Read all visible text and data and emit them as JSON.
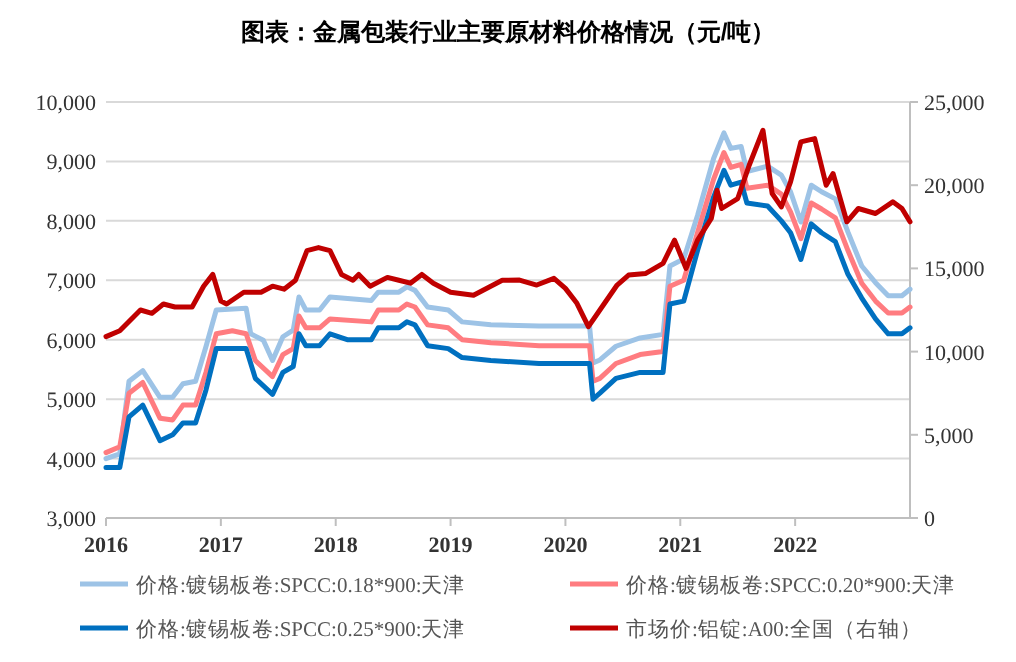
{
  "chart_data": {
    "type": "line",
    "title": "图表：金属包装行业主要原材料价格情况（元/吨）",
    "xlim": [
      2016,
      2023
    ],
    "xticks": [
      2016,
      2017,
      2018,
      2019,
      2020,
      2021,
      2022
    ],
    "ylim": [
      3000,
      10000
    ],
    "yticks": [
      {
        "value": 3000,
        "label": "3,000"
      },
      {
        "value": 4000,
        "label": "4,000"
      },
      {
        "value": 5000,
        "label": "5,000"
      },
      {
        "value": 6000,
        "label": "6,000"
      },
      {
        "value": 7000,
        "label": "7,000"
      },
      {
        "value": 8000,
        "label": "8,000"
      },
      {
        "value": 9000,
        "label": "9,000"
      },
      {
        "value": 10000,
        "label": "10,000"
      }
    ],
    "y2lim": [
      0,
      25000
    ],
    "y2ticks": [
      0,
      {
        "value": 5000,
        "label": "5,000"
      },
      {
        "value": 10000,
        "label": "10,000"
      },
      {
        "value": 15000,
        "label": "15,000"
      },
      {
        "value": 20000,
        "label": "20,000"
      },
      {
        "value": 25000,
        "label": "25,000"
      }
    ],
    "grid": "y",
    "legend": "bottom",
    "marker": "none",
    "line_style": "solid",
    "series": [
      {
        "name": "价格:镀锡板卷:SPCC:0.18*900:天津",
        "color": "#9dc3e6",
        "x": [
          2016.0,
          2016.12,
          2016.2,
          2016.32,
          2016.47,
          2016.58,
          2016.67,
          2016.78,
          2016.87,
          2016.96,
          2017.22,
          2017.26,
          2017.37,
          2017.45,
          2017.54,
          2017.63,
          2017.68,
          2017.74,
          2017.86,
          2017.95,
          2018.31,
          2018.37,
          2018.55,
          2018.62,
          2018.69,
          2018.8,
          2018.98,
          2019.1,
          2019.35,
          2019.77,
          2020.21,
          2020.24,
          2020.3,
          2020.44,
          2020.65,
          2020.85,
          2020.91,
          2021.03,
          2021.15,
          2021.29,
          2021.38,
          2021.44,
          2021.53,
          2021.58,
          2021.76,
          2021.88,
          2021.96,
          2022.05,
          2022.14,
          2022.23,
          2022.35,
          2022.46,
          2022.58,
          2022.7,
          2022.81,
          2022.93,
          2023.0
        ],
        "values": [
          4000,
          4080,
          5300,
          5480,
          5030,
          5030,
          5260,
          5300,
          5880,
          6500,
          6530,
          6100,
          5990,
          5650,
          6050,
          6160,
          6720,
          6500,
          6500,
          6720,
          6660,
          6800,
          6800,
          6890,
          6830,
          6550,
          6500,
          6300,
          6250,
          6230,
          6230,
          5610,
          5660,
          5890,
          6030,
          6090,
          7240,
          7360,
          8090,
          9050,
          9480,
          9220,
          9250,
          8830,
          8920,
          8770,
          8490,
          7980,
          8600,
          8490,
          8370,
          7810,
          7240,
          6960,
          6740,
          6740,
          6850
        ]
      },
      {
        "name": "价格:镀锡板卷:SPCC:0.20*900:天津",
        "color": "#ff7c80",
        "x": [
          2016.0,
          2016.12,
          2016.2,
          2016.32,
          2016.47,
          2016.58,
          2016.67,
          2016.78,
          2016.87,
          2016.96,
          2017.1,
          2017.22,
          2017.3,
          2017.45,
          2017.54,
          2017.63,
          2017.68,
          2017.74,
          2017.86,
          2017.95,
          2018.31,
          2018.37,
          2018.55,
          2018.62,
          2018.69,
          2018.8,
          2018.98,
          2019.1,
          2019.35,
          2019.77,
          2020.21,
          2020.24,
          2020.3,
          2020.44,
          2020.65,
          2020.85,
          2020.91,
          2021.03,
          2021.15,
          2021.29,
          2021.38,
          2021.44,
          2021.53,
          2021.58,
          2021.76,
          2021.88,
          2021.96,
          2022.05,
          2022.14,
          2022.23,
          2022.35,
          2022.46,
          2022.58,
          2022.7,
          2022.81,
          2022.93,
          2023.0
        ],
        "values": [
          4100,
          4200,
          5100,
          5280,
          4680,
          4650,
          4900,
          4900,
          5450,
          6100,
          6150,
          6100,
          5650,
          5380,
          5750,
          5850,
          6400,
          6200,
          6200,
          6350,
          6300,
          6500,
          6500,
          6600,
          6550,
          6250,
          6200,
          6000,
          5950,
          5900,
          5900,
          5300,
          5350,
          5600,
          5750,
          5800,
          6900,
          7000,
          7800,
          8700,
          9150,
          8900,
          8950,
          8550,
          8600,
          8450,
          8150,
          7700,
          8300,
          8200,
          8050,
          7500,
          6950,
          6650,
          6450,
          6450,
          6550
        ]
      },
      {
        "name": "价格:镀锡板卷:SPCC:0.25*900:天津",
        "color": "#0070c0",
        "x": [
          2016.0,
          2016.12,
          2016.2,
          2016.32,
          2016.47,
          2016.58,
          2016.67,
          2016.78,
          2016.87,
          2016.96,
          2017.22,
          2017.3,
          2017.45,
          2017.54,
          2017.63,
          2017.68,
          2017.74,
          2017.86,
          2017.95,
          2018.1,
          2018.31,
          2018.37,
          2018.55,
          2018.62,
          2018.69,
          2018.8,
          2018.98,
          2019.1,
          2019.35,
          2019.77,
          2020.21,
          2020.24,
          2020.3,
          2020.44,
          2020.65,
          2020.85,
          2020.91,
          2021.03,
          2021.15,
          2021.29,
          2021.38,
          2021.44,
          2021.53,
          2021.58,
          2021.76,
          2021.88,
          2021.96,
          2022.05,
          2022.14,
          2022.23,
          2022.35,
          2022.46,
          2022.58,
          2022.7,
          2022.81,
          2022.93,
          2023.0
        ],
        "values": [
          3850,
          3850,
          4700,
          4900,
          4300,
          4400,
          4600,
          4600,
          5150,
          5850,
          5850,
          5350,
          5080,
          5450,
          5550,
          6100,
          5900,
          5900,
          6100,
          6000,
          6000,
          6200,
          6200,
          6300,
          6250,
          5900,
          5850,
          5700,
          5650,
          5600,
          5600,
          5000,
          5100,
          5350,
          5450,
          5450,
          6600,
          6650,
          7500,
          8400,
          8850,
          8600,
          8650,
          8300,
          8250,
          8000,
          7800,
          7350,
          7950,
          7800,
          7650,
          7100,
          6700,
          6350,
          6100,
          6100,
          6200
        ]
      },
      {
        "name": "市场价:铝锭:A00:全国（右轴）",
        "color": "#c00000",
        "axis": "y2",
        "x": [
          2016.0,
          2016.12,
          2016.3,
          2016.4,
          2016.5,
          2016.6,
          2016.75,
          2016.85,
          2016.93,
          2017.0,
          2017.05,
          2017.2,
          2017.35,
          2017.45,
          2017.55,
          2017.65,
          2017.75,
          2017.85,
          2017.95,
          2018.05,
          2018.15,
          2018.2,
          2018.3,
          2018.45,
          2018.55,
          2018.65,
          2018.75,
          2018.85,
          2019.0,
          2019.2,
          2019.3,
          2019.45,
          2019.6,
          2019.75,
          2019.9,
          2020.0,
          2020.1,
          2020.2,
          2020.3,
          2020.45,
          2020.55,
          2020.7,
          2020.85,
          2020.95,
          2021.05,
          2021.15,
          2021.27,
          2021.32,
          2021.36,
          2021.5,
          2021.6,
          2021.72,
          2021.8,
          2021.88,
          2021.96,
          2022.05,
          2022.17,
          2022.27,
          2022.33,
          2022.45,
          2022.55,
          2022.7,
          2022.85,
          2022.93,
          2023.0
        ],
        "values": [
          10900,
          11250,
          12500,
          12300,
          12860,
          12680,
          12680,
          13930,
          14640,
          13040,
          12860,
          13570,
          13570,
          13930,
          13750,
          14290,
          16070,
          16250,
          16070,
          14640,
          14290,
          14640,
          13930,
          14460,
          14290,
          14110,
          14640,
          14110,
          13570,
          13390,
          13750,
          14290,
          14300,
          14000,
          14400,
          13800,
          12900,
          11500,
          12500,
          14000,
          14600,
          14700,
          15300,
          16700,
          15000,
          16700,
          18000,
          19700,
          18600,
          19200,
          21200,
          23300,
          19500,
          18700,
          20200,
          22600,
          22800,
          20000,
          20700,
          17800,
          18600,
          18300,
          19000,
          18600,
          17800
        ]
      }
    ]
  }
}
